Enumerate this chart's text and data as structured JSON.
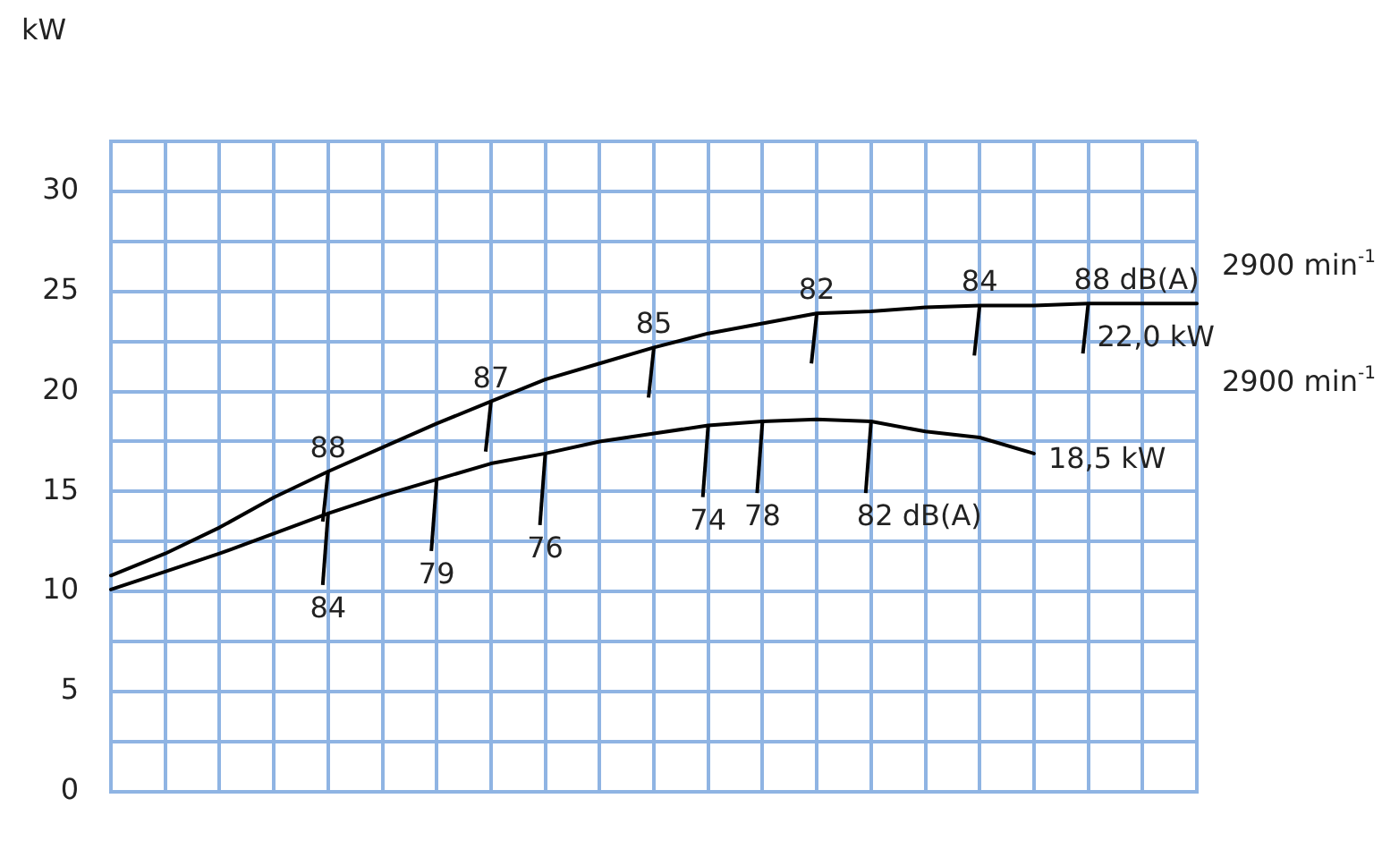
{
  "chart_data": {
    "type": "line",
    "ylabel": "kW",
    "categories": [
      null,
      null,
      null,
      null,
      null,
      null,
      null,
      null,
      null,
      null,
      null,
      null,
      null,
      null,
      null,
      null,
      null,
      null,
      null,
      null,
      null
    ],
    "series": [
      {
        "name": "22,0 kW",
        "color": "#000000",
        "values": [
          10.8,
          11.9,
          13.2,
          14.7,
          16.0,
          17.2,
          18.4,
          19.5,
          20.6,
          21.4,
          22.2,
          22.9,
          23.4,
          23.9,
          24.0,
          24.2,
          24.3,
          24.3,
          24.4,
          24.4,
          24.4
        ]
      },
      {
        "name": "18,5 kW",
        "color": "#000000",
        "values": [
          10.1,
          11.0,
          11.9,
          12.9,
          13.9,
          14.8,
          15.6,
          16.4,
          16.9,
          17.5,
          17.9,
          18.3,
          18.5,
          18.6,
          18.5,
          18.0,
          17.7,
          16.9,
          null,
          null,
          null
        ]
      }
    ],
    "ylim": [
      0,
      32.5
    ],
    "yticks": [
      0,
      {
        "value": 2.5,
        "label": null
      },
      5,
      {
        "value": 7.5,
        "label": null
      },
      10,
      {
        "value": 12.5,
        "label": null
      },
      15,
      {
        "value": 17.5,
        "label": null
      },
      20,
      {
        "value": 22.5,
        "label": null
      },
      25,
      {
        "value": 27.5,
        "label": null
      },
      30,
      {
        "value": 32.5,
        "label": null
      }
    ],
    "tick_labels": "y",
    "grid": true,
    "marker": "none",
    "line_style": "solid",
    "annotations": [
      {
        "text": "88",
        "y": 16.0
      },
      {
        "text": "87",
        "y": 19.5
      },
      {
        "text": "85",
        "y": 22.2
      },
      {
        "text": "82",
        "y": 23.9
      },
      {
        "text": "84",
        "y": 24.3
      },
      {
        "text": "88 dB(A)",
        "y": 24.4
      },
      {
        "text": "84",
        "y": 13.9
      },
      {
        "text": "79",
        "y": 15.6
      },
      {
        "text": "76",
        "y": 16.9
      },
      {
        "text": "74",
        "y": 18.3
      },
      {
        "text": "78",
        "y": 18.5
      },
      {
        "text": "82 dB(A)",
        "y": 18.5
      },
      "2900 min$^{-1}$",
      "2900 min$^{-1}$"
    ]
  }
}
